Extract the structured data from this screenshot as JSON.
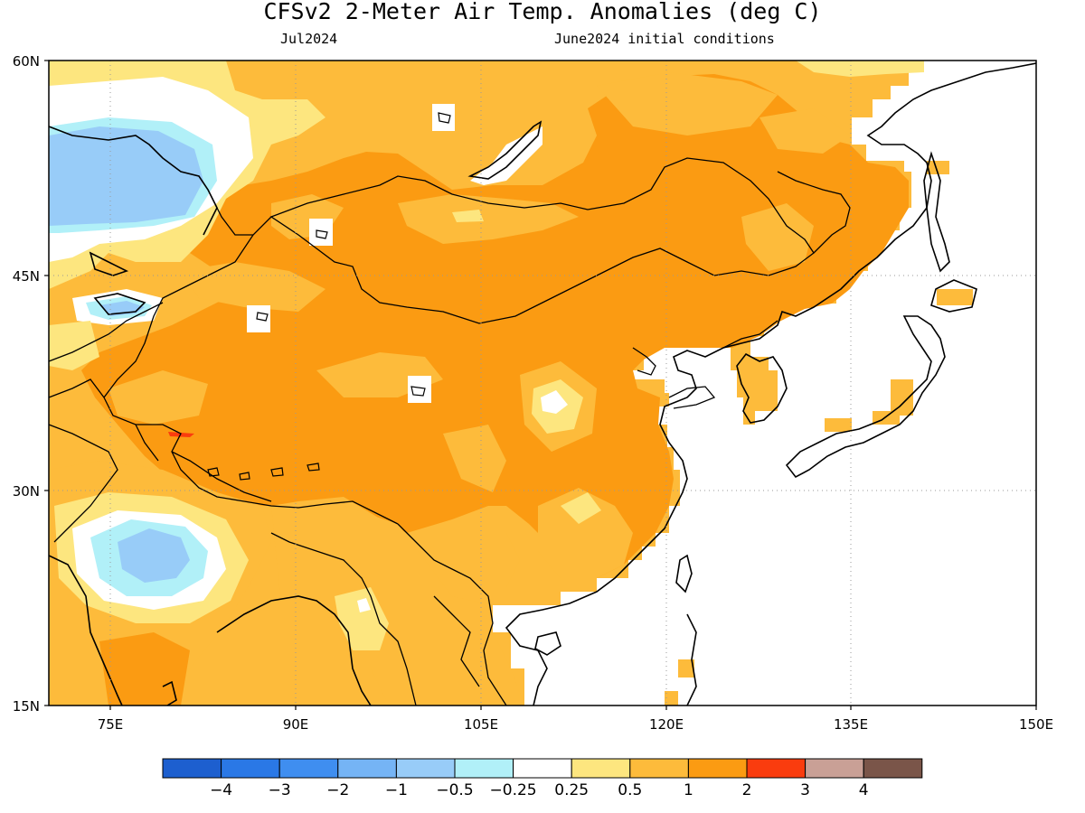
{
  "title": "CFSv2 2-Meter Air Temp. Anomalies (deg C)",
  "subtitle_left": "Jul2024",
  "subtitle_right": "June2024 initial conditions",
  "map": {
    "lat_labels": [
      "60N",
      "45N",
      "30N",
      "15N"
    ],
    "lon_labels": [
      "75E",
      "90E",
      "105E",
      "120E",
      "135E",
      "150E"
    ]
  },
  "colorbar": {
    "colors": [
      "#1d5fcf",
      "#2a78e6",
      "#3f8ef0",
      "#75b4f5",
      "#98ccf8",
      "#b1f0f8",
      "#ffffff",
      "#fde67f",
      "#fdbb3b",
      "#fb9b12",
      "#fa3c0e",
      "#c9a096",
      "#7a5549"
    ],
    "labels": [
      "−4",
      "−3",
      "−2",
      "−1",
      "−0.5",
      "−0.25",
      "0.25",
      "0.5",
      "1",
      "2",
      "3",
      "4"
    ]
  }
}
